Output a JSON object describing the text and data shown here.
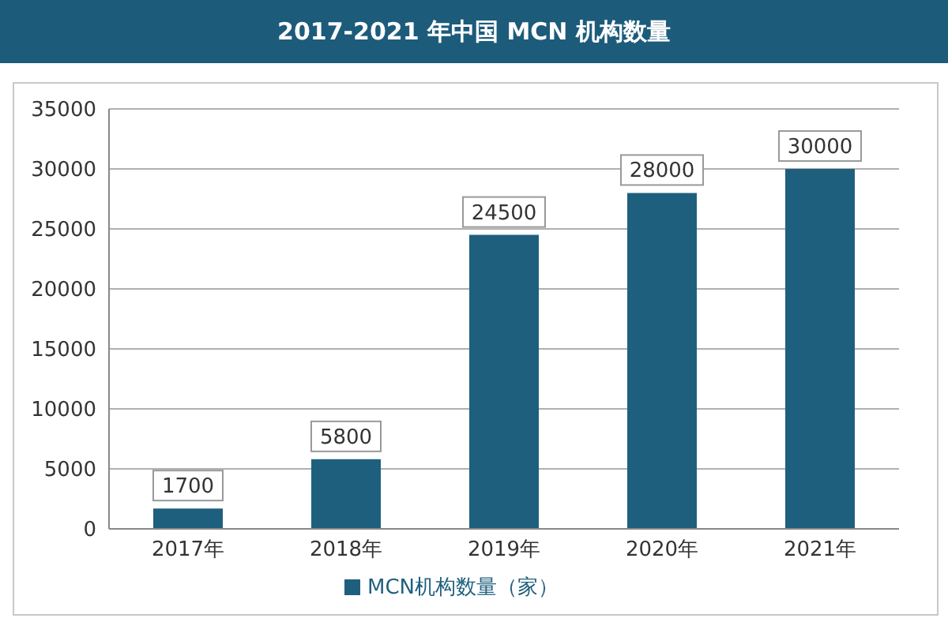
{
  "chart_data": {
    "type": "bar",
    "title": "2017-2021 年中国 MCN 机构数量",
    "categories": [
      "2017年",
      "2018年",
      "2019年",
      "2020年",
      "2021年"
    ],
    "series": [
      {
        "name": "MCN机构数量（家）",
        "color": "#1f5f7e",
        "values": [
          1700,
          5800,
          24500,
          28000,
          30000
        ]
      }
    ],
    "ylim": [
      0,
      35000
    ],
    "yticks": [
      0,
      5000,
      10000,
      15000,
      20000,
      25000,
      30000,
      35000
    ],
    "grid": "y",
    "legend": "bottom",
    "data_labels": true
  }
}
